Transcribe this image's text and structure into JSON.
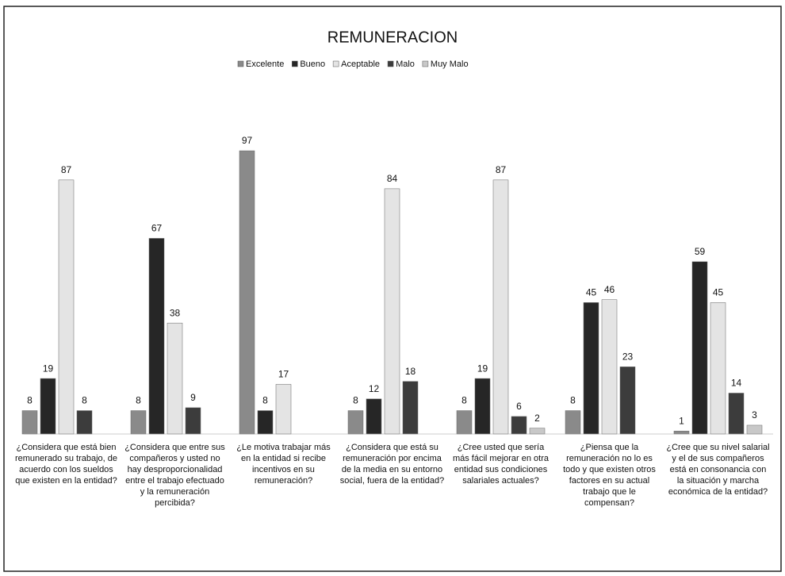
{
  "chart_data": {
    "type": "bar",
    "title": "REMUNERACION",
    "categories": [
      "¿Considera que está bien remunerado su trabajo, de acuerdo con los sueldos que existen en la entidad?",
      "¿Considera que entre sus compañeros y usted no hay desproporcionalidad entre el trabajo efectuado y la remuneración percibida?",
      "¿Le motiva trabajar más en la entidad si recibe incentivos en su remuneración?",
      "¿Considera que está su remuneración por encima de la media en su entorno social, fuera de la entidad?",
      "¿Cree usted que sería más fácil mejorar en otra entidad sus condiciones salariales actuales?",
      "¿Piensa que la remuneración no lo es todo y que existen otros factores en su actual trabajo que le compensan?",
      "¿Cree que su nivel salarial y el de sus compañeros está en consonancia con la situación y marcha económica de la entidad?"
    ],
    "series": [
      {
        "name": "Excelente",
        "color": "#8a8a8a",
        "values": [
          8,
          8,
          97,
          8,
          8,
          8,
          1
        ]
      },
      {
        "name": "Bueno",
        "color": "#262626",
        "values": [
          19,
          67,
          8,
          12,
          19,
          45,
          59
        ]
      },
      {
        "name": "Aceptable",
        "color": "#e4e4e4",
        "values": [
          87,
          38,
          17,
          84,
          87,
          46,
          45
        ]
      },
      {
        "name": "Malo",
        "color": "#3c3c3c",
        "values": [
          8,
          9,
          null,
          18,
          6,
          23,
          14
        ]
      },
      {
        "name": "Muy Malo",
        "color": "#c8c8c8",
        "values": [
          null,
          null,
          null,
          null,
          2,
          null,
          3
        ]
      }
    ],
    "ylim": [
      0,
      100
    ],
    "legend": "top"
  }
}
